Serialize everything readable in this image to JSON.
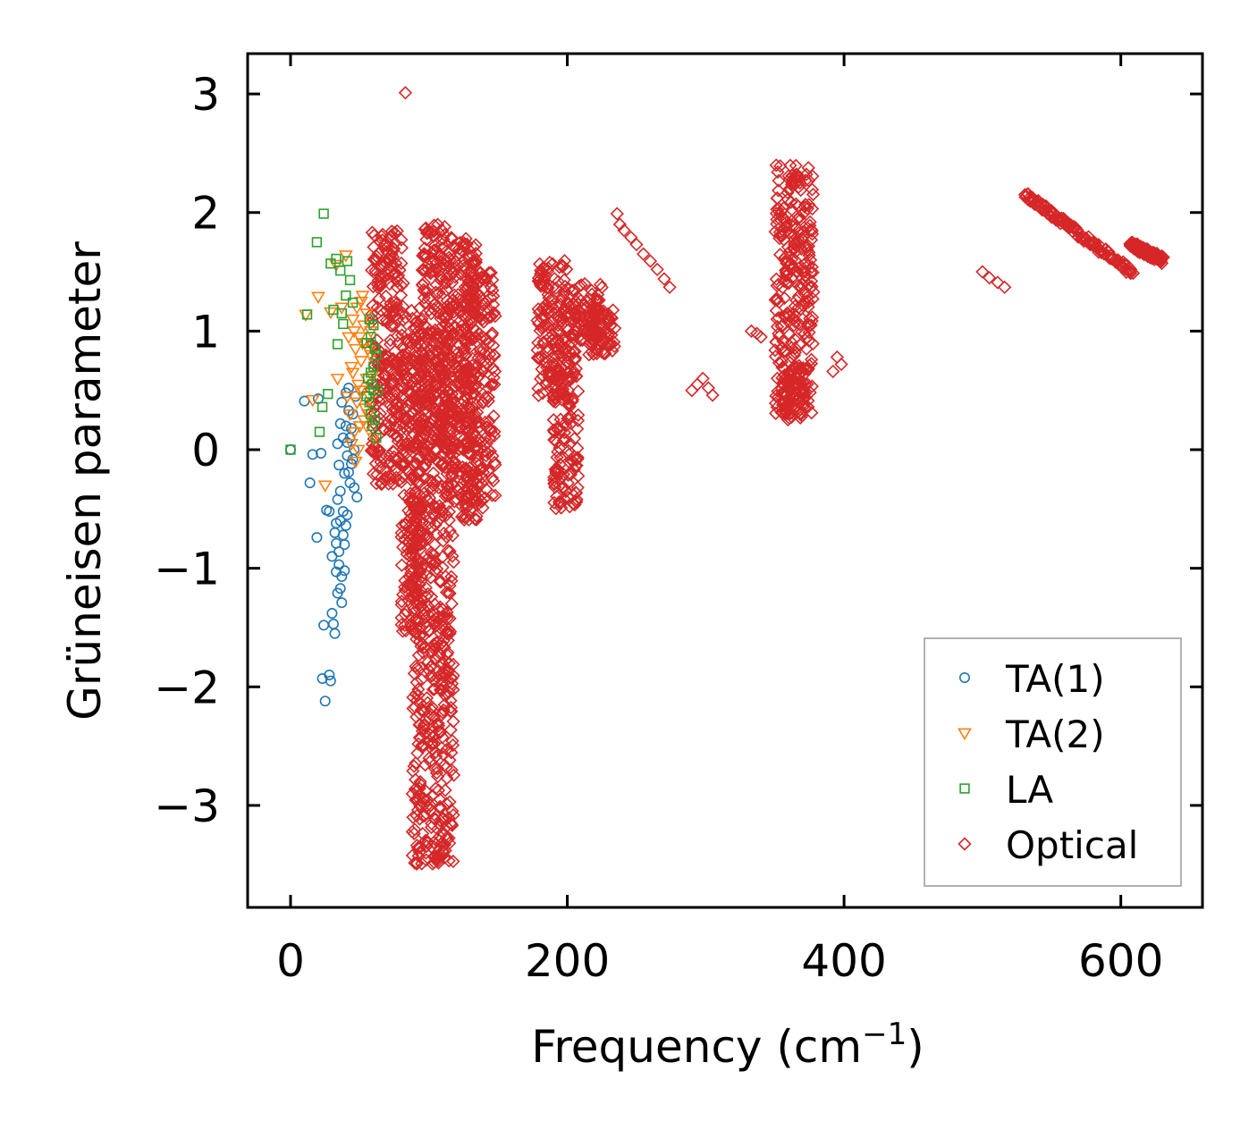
{
  "chart_data": {
    "type": "scatter",
    "title": "",
    "xlabel": "Frequency (cm",
    "xlabel_sup": "−1",
    "xlabel_close": ")",
    "ylabel": "Grüneisen parameter",
    "xlim": [
      -31,
      659
    ],
    "ylim": [
      -3.86,
      3.34
    ],
    "xticks": [
      0,
      200,
      400,
      600
    ],
    "xtick_labels": [
      "0",
      "200",
      "400",
      "600"
    ],
    "yticks": [
      3,
      2,
      1,
      0,
      -1,
      -2,
      -3
    ],
    "ytick_labels": [
      "3",
      "2",
      "1",
      "0",
      "−1",
      "−2",
      "−3"
    ],
    "legend_position": "lower-right",
    "series": [
      {
        "name": "TA(1)",
        "label": "TA(1)",
        "marker": "circle",
        "color": "#1f77b4",
        "points": [
          [
            0,
            0.0
          ],
          [
            10,
            0.41
          ],
          [
            14,
            -0.28
          ],
          [
            16,
            -0.04
          ],
          [
            19,
            -0.74
          ],
          [
            20,
            0.43
          ],
          [
            22,
            -0.03
          ],
          [
            23,
            -1.93
          ],
          [
            24,
            -1.48
          ],
          [
            25,
            -2.12
          ],
          [
            26,
            -0.51
          ],
          [
            28,
            -1.9
          ],
          [
            29,
            -1.95
          ],
          [
            30,
            -1.38
          ],
          [
            31,
            -1.47
          ],
          [
            32,
            -1.55
          ],
          [
            33,
            -1.03
          ],
          [
            34,
            -1.21
          ],
          [
            35,
            -0.86
          ],
          [
            36,
            -1.17
          ],
          [
            37,
            -1.29
          ],
          [
            38,
            -0.52
          ],
          [
            40,
            -0.64
          ],
          [
            42,
            0.52
          ],
          [
            30,
            -0.9
          ],
          [
            33,
            -0.62
          ],
          [
            36,
            -0.35
          ],
          [
            39,
            -0.2
          ],
          [
            41,
            -0.05
          ],
          [
            43,
            0.1
          ],
          [
            45,
            0.3
          ],
          [
            47,
            0.45
          ],
          [
            38,
            0.1
          ],
          [
            40,
            0.2
          ],
          [
            42,
            0.33
          ],
          [
            36,
            0.22
          ],
          [
            34,
            -0.42
          ],
          [
            44,
            -0.12
          ],
          [
            46,
            -0.32
          ],
          [
            48,
            -0.4
          ],
          [
            32,
            -0.7
          ],
          [
            35,
            -0.97
          ],
          [
            37,
            -1.07
          ],
          [
            39,
            -0.8
          ],
          [
            41,
            -0.55
          ],
          [
            43,
            -0.28
          ],
          [
            45,
            -0.08
          ],
          [
            28,
            -0.52
          ],
          [
            35,
            -0.13
          ],
          [
            37,
            0.4
          ],
          [
            40,
            0.48
          ],
          [
            34,
            0.05
          ],
          [
            38,
            -0.72
          ],
          [
            39,
            -1.02
          ],
          [
            36,
            -0.6
          ],
          [
            33,
            -0.79
          ],
          [
            42,
            -0.19
          ],
          [
            44,
            0.18
          ],
          [
            41,
            0.06
          ],
          [
            46,
            0.0
          ]
        ]
      },
      {
        "name": "TA(2)",
        "label": "TA(2)",
        "marker": "triangle-down",
        "color": "#ff7f0e",
        "points": [
          [
            11,
            1.14
          ],
          [
            16,
            0.42
          ],
          [
            20,
            1.29
          ],
          [
            25,
            -0.3
          ],
          [
            29,
            1.16
          ],
          [
            33,
            1.56
          ],
          [
            34,
            0.6
          ],
          [
            37,
            1.2
          ],
          [
            40,
            1.64
          ],
          [
            44,
            0.7
          ],
          [
            46,
            1.0
          ],
          [
            48,
            0.4
          ],
          [
            50,
            0.2
          ],
          [
            52,
            1.3
          ],
          [
            54,
            0.9
          ],
          [
            55,
            0.6
          ],
          [
            56,
            0.3
          ],
          [
            58,
            0.8
          ],
          [
            60,
            0.1
          ],
          [
            42,
            0.95
          ],
          [
            45,
            1.1
          ],
          [
            47,
            0.85
          ],
          [
            49,
            0.55
          ],
          [
            51,
            0.75
          ],
          [
            53,
            1.05
          ],
          [
            57,
            0.45
          ],
          [
            59,
            0.62
          ],
          [
            43,
            0.3
          ],
          [
            46,
            0.15
          ],
          [
            50,
            0.95
          ],
          [
            52,
            0.5
          ],
          [
            55,
            1.15
          ],
          [
            48,
            1.2
          ],
          [
            44,
            0.05
          ],
          [
            47,
            -0.1
          ],
          [
            53,
            0.25
          ],
          [
            56,
            0.85
          ],
          [
            41,
            0.45
          ],
          [
            49,
            0.0
          ],
          [
            51,
            1.25
          ],
          [
            54,
            0.35
          ],
          [
            58,
            1.0
          ],
          [
            45,
            0.65
          ],
          [
            50,
            0.5
          ],
          [
            52,
            0.9
          ],
          [
            55,
            0.2
          ]
        ]
      },
      {
        "name": "LA",
        "label": "LA",
        "marker": "square",
        "color": "#2ca02c",
        "points": [
          [
            0,
            0.0
          ],
          [
            12,
            1.14
          ],
          [
            19,
            1.75
          ],
          [
            21,
            0.15
          ],
          [
            23,
            0.36
          ],
          [
            24,
            1.99
          ],
          [
            27,
            0.47
          ],
          [
            29,
            1.57
          ],
          [
            31,
            1.18
          ],
          [
            33,
            1.61
          ],
          [
            34,
            0.89
          ],
          [
            36,
            1.51
          ],
          [
            37,
            1.15
          ],
          [
            38,
            1.06
          ],
          [
            40,
            1.3
          ],
          [
            41,
            1.59
          ],
          [
            43,
            1.43
          ],
          [
            45,
            1.24
          ],
          [
            55,
            0.45
          ],
          [
            60,
            0.5
          ],
          [
            61,
            0.85
          ],
          [
            62,
            0.1
          ],
          [
            58,
            0.3
          ],
          [
            57,
            1.1
          ],
          [
            60,
            0.7
          ],
          [
            59,
            0.2
          ],
          [
            56,
            0.6
          ],
          [
            63,
            0.5
          ],
          [
            58,
            0.95
          ],
          [
            61,
            0.25
          ],
          [
            57,
            0.4
          ],
          [
            62,
            0.8
          ],
          [
            59,
            0.55
          ],
          [
            55,
            0.9
          ],
          [
            60,
            1.05
          ],
          [
            58,
            0.65
          ]
        ]
      },
      {
        "name": "Optical",
        "label": "Optical",
        "marker": "diamond",
        "color": "#d62728",
        "points": [
          [
            83,
            3.01
          ],
          [
            236,
            1.99
          ],
          [
            238,
            1.9
          ],
          [
            241,
            1.85
          ],
          [
            246,
            1.79
          ],
          [
            250,
            1.73
          ],
          [
            255,
            1.65
          ],
          [
            260,
            1.59
          ],
          [
            265,
            1.52
          ],
          [
            270,
            1.44
          ],
          [
            274,
            1.37
          ],
          [
            290,
            0.5
          ],
          [
            294,
            0.55
          ],
          [
            298,
            0.6
          ],
          [
            302,
            0.52
          ],
          [
            305,
            0.46
          ],
          [
            333,
            1.0
          ],
          [
            337,
            0.98
          ],
          [
            340,
            0.95
          ],
          [
            395,
            0.78
          ],
          [
            398,
            0.72
          ],
          [
            392,
            0.66
          ],
          [
            500,
            1.5
          ],
          [
            505,
            1.45
          ],
          [
            511,
            1.41
          ],
          [
            516,
            1.37
          ]
        ],
        "ranges": [
          {
            "xmin": 58,
            "xmax": 82,
            "ymin": -0.3,
            "ymax": 1.85
          },
          {
            "xmin": 80,
            "xmax": 95,
            "ymin": -1.6,
            "ymax": 1.2
          },
          {
            "xmin": 88,
            "xmax": 118,
            "ymin": -3.5,
            "ymax": 1.0
          },
          {
            "xmin": 95,
            "xmax": 112,
            "ymin": 0.0,
            "ymax": 1.9
          },
          {
            "xmin": 112,
            "xmax": 135,
            "ymin": -0.6,
            "ymax": 1.8
          },
          {
            "xmin": 125,
            "xmax": 148,
            "ymin": -0.5,
            "ymax": 1.5
          },
          {
            "xmin": 178,
            "xmax": 200,
            "ymin": 0.4,
            "ymax": 1.6
          },
          {
            "xmin": 190,
            "xmax": 208,
            "ymin": -0.5,
            "ymax": 0.9
          },
          {
            "xmin": 200,
            "xmax": 225,
            "ymin": 0.9,
            "ymax": 1.4
          },
          {
            "xmin": 215,
            "xmax": 235,
            "ymin": 0.8,
            "ymax": 1.2
          },
          {
            "xmin": 350,
            "xmax": 378,
            "ymin": 0.3,
            "ymax": 2.4
          },
          {
            "xmin": 355,
            "xmax": 372,
            "ymin": 0.25,
            "ymax": 0.7
          }
        ],
        "lines": [
          {
            "x0": 531,
            "y0": 2.15,
            "x1": 608,
            "y1": 1.5
          },
          {
            "x0": 607,
            "y0": 1.73,
            "x1": 630,
            "y1": 1.6
          }
        ]
      }
    ]
  }
}
